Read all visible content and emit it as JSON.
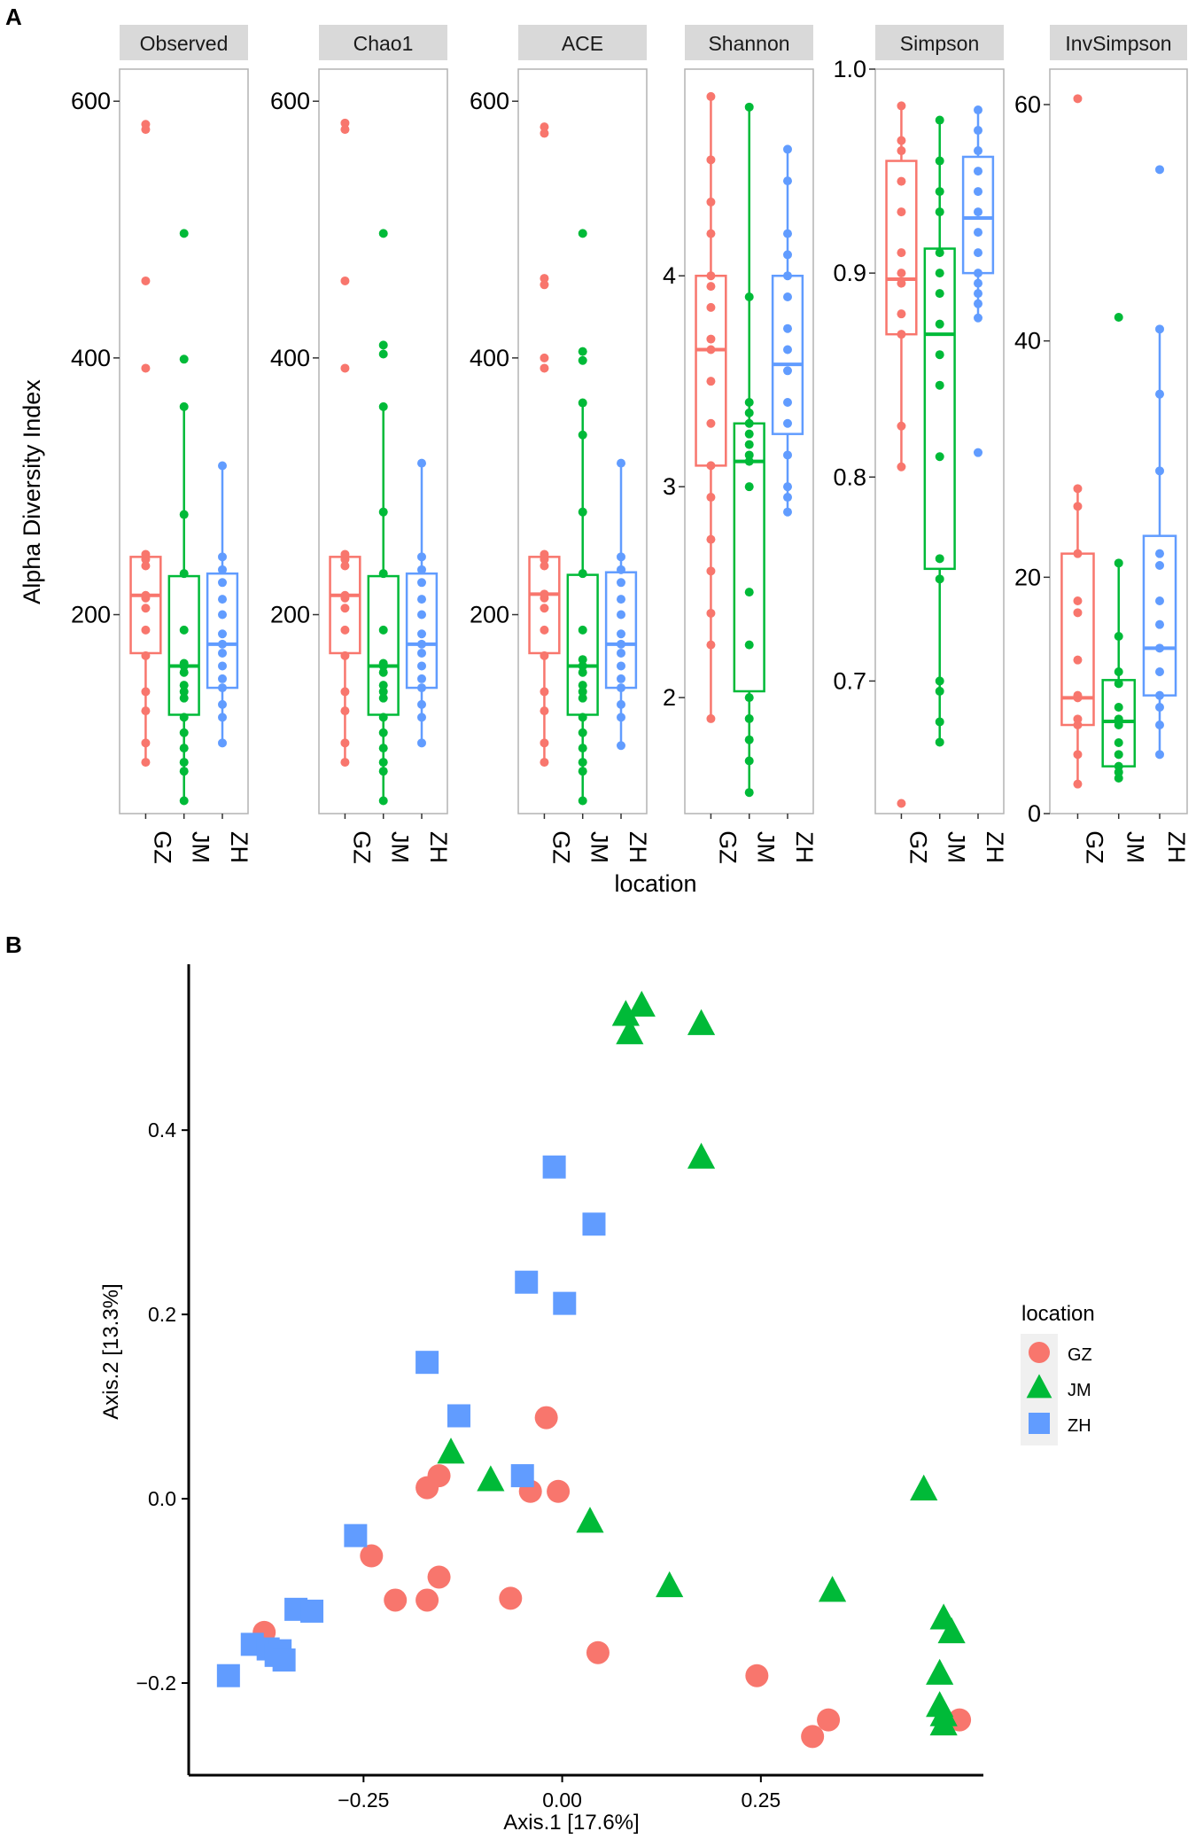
{
  "panel_a_label": "A",
  "panel_b_label": "B",
  "colors": {
    "GZ": "#f8766d",
    "JM": "#00ba38",
    "ZH": "#619cff",
    "strip_bg": "#d9d9d9",
    "panel_border": "#b3b3b3"
  },
  "chart_data": [
    {
      "type": "box",
      "ylabel": "Alpha Diversity Index",
      "xlabel": "location",
      "categories": [
        "GZ",
        "JM",
        "ZH"
      ],
      "facets": [
        {
          "name": "Observed",
          "ylim": [
            45,
            625
          ],
          "ticks": [
            200,
            400,
            600
          ],
          "groups": [
            {
              "name": "GZ",
              "q1": 170,
              "median": 215,
              "q3": 245,
              "whisker_low": 85,
              "whisker_high": 247,
              "points": [
                582,
                578,
                460,
                392,
                247,
                243,
                238,
                215,
                213,
                205,
                188,
                168,
                140,
                125,
                100,
                85
              ]
            },
            {
              "name": "JM",
              "q1": 122,
              "median": 160,
              "q3": 230,
              "whisker_low": 55,
              "whisker_high": 362,
              "points": [
                497,
                399,
                362,
                278,
                232,
                188,
                162,
                160,
                155,
                145,
                140,
                135,
                120,
                108,
                96,
                85,
                78,
                55
              ]
            },
            {
              "name": "ZH",
              "q1": 143,
              "median": 177,
              "q3": 232,
              "whisker_low": 100,
              "whisker_high": 316,
              "points": [
                316,
                245,
                235,
                225,
                212,
                200,
                185,
                177,
                170,
                160,
                150,
                143,
                130,
                120,
                100
              ]
            }
          ]
        },
        {
          "name": "Chao1",
          "ylim": [
            45,
            625
          ],
          "ticks": [
            200,
            400,
            600
          ],
          "groups": [
            {
              "name": "GZ",
              "q1": 170,
              "median": 215,
              "q3": 245,
              "whisker_low": 85,
              "whisker_high": 247,
              "points": [
                583,
                578,
                460,
                392,
                247,
                243,
                238,
                215,
                213,
                205,
                188,
                168,
                140,
                125,
                100,
                85
              ]
            },
            {
              "name": "JM",
              "q1": 122,
              "median": 160,
              "q3": 230,
              "whisker_low": 55,
              "whisker_high": 362,
              "points": [
                497,
                410,
                403,
                362,
                280,
                232,
                188,
                162,
                160,
                155,
                145,
                140,
                135,
                120,
                108,
                96,
                85,
                78,
                55
              ]
            },
            {
              "name": "ZH",
              "q1": 143,
              "median": 177,
              "q3": 232,
              "whisker_low": 100,
              "whisker_high": 318,
              "points": [
                318,
                245,
                235,
                225,
                212,
                200,
                185,
                177,
                170,
                160,
                150,
                143,
                130,
                120,
                100
              ]
            }
          ]
        },
        {
          "name": "ACE",
          "ylim": [
            45,
            625
          ],
          "ticks": [
            200,
            400,
            600
          ],
          "groups": [
            {
              "name": "GZ",
              "q1": 170,
              "median": 216,
              "q3": 245,
              "whisker_low": 85,
              "whisker_high": 247,
              "points": [
                580,
                575,
                462,
                457,
                400,
                392,
                247,
                243,
                238,
                216,
                213,
                205,
                188,
                168,
                140,
                125,
                100,
                85
              ]
            },
            {
              "name": "JM",
              "q1": 122,
              "median": 160,
              "q3": 231,
              "whisker_low": 55,
              "whisker_high": 365,
              "points": [
                497,
                405,
                398,
                365,
                340,
                280,
                232,
                188,
                165,
                160,
                155,
                145,
                140,
                135,
                120,
                108,
                96,
                85,
                78,
                55
              ]
            },
            {
              "name": "ZH",
              "q1": 143,
              "median": 177,
              "q3": 233,
              "whisker_low": 98,
              "whisker_high": 318,
              "points": [
                318,
                245,
                235,
                225,
                212,
                200,
                185,
                177,
                170,
                160,
                150,
                143,
                130,
                120,
                98
              ]
            }
          ]
        },
        {
          "name": "Shannon",
          "ylim": [
            1.45,
            4.98
          ],
          "ticks": [
            2,
            3,
            4
          ],
          "groups": [
            {
              "name": "GZ",
              "q1": 3.1,
              "median": 3.65,
              "q3": 4.0,
              "whisker_low": 1.9,
              "whisker_high": 4.85,
              "points": [
                4.85,
                4.55,
                4.35,
                4.2,
                4.0,
                3.95,
                3.85,
                3.7,
                3.65,
                3.5,
                3.3,
                3.1,
                2.95,
                2.75,
                2.6,
                2.4,
                2.25,
                1.9
              ]
            },
            {
              "name": "JM",
              "q1": 2.03,
              "median": 3.12,
              "q3": 3.3,
              "whisker_low": 1.55,
              "whisker_high": 4.8,
              "points": [
                4.8,
                3.9,
                3.4,
                3.35,
                3.3,
                3.25,
                3.2,
                3.15,
                3.12,
                3.0,
                2.5,
                2.25,
                2.0,
                1.9,
                1.8,
                1.7,
                1.55
              ]
            },
            {
              "name": "ZH",
              "q1": 3.25,
              "median": 3.58,
              "q3": 4.0,
              "whisker_low": 2.88,
              "whisker_high": 4.6,
              "points": [
                4.6,
                4.45,
                4.2,
                4.1,
                4.0,
                3.9,
                3.75,
                3.65,
                3.55,
                3.4,
                3.3,
                3.15,
                3.0,
                2.95,
                2.88
              ]
            }
          ]
        },
        {
          "name": "Simpson",
          "ylim": [
            0.635,
            1.0
          ],
          "ticks": [
            0.7,
            0.8,
            0.9,
            1.0
          ],
          "tick_labels": [
            "0.7",
            "0.8",
            "0.9",
            "1.0"
          ],
          "groups": [
            {
              "name": "GZ",
              "q1": 0.87,
              "median": 0.897,
              "q3": 0.955,
              "whisker_low": 0.805,
              "whisker_high": 0.982,
              "points": [
                0.982,
                0.965,
                0.96,
                0.945,
                0.93,
                0.91,
                0.9,
                0.895,
                0.88,
                0.87,
                0.825,
                0.805,
                0.64
              ]
            },
            {
              "name": "JM",
              "q1": 0.755,
              "median": 0.87,
              "q3": 0.912,
              "whisker_low": 0.67,
              "whisker_high": 0.975,
              "points": [
                0.975,
                0.955,
                0.94,
                0.93,
                0.91,
                0.9,
                0.89,
                0.875,
                0.86,
                0.845,
                0.81,
                0.76,
                0.75,
                0.7,
                0.695,
                0.68,
                0.67
              ]
            },
            {
              "name": "ZH",
              "q1": 0.9,
              "median": 0.927,
              "q3": 0.957,
              "whisker_low": 0.878,
              "whisker_high": 0.98,
              "points": [
                0.98,
                0.97,
                0.96,
                0.95,
                0.94,
                0.93,
                0.92,
                0.91,
                0.9,
                0.895,
                0.89,
                0.885,
                0.878,
                0.812
              ]
            }
          ]
        },
        {
          "name": "InvSimpson",
          "ylim": [
            0,
            63
          ],
          "ticks": [
            0,
            20,
            40,
            60
          ],
          "groups": [
            {
              "name": "GZ",
              "q1": 7.5,
              "median": 9.8,
              "q3": 22,
              "whisker_low": 2.5,
              "whisker_high": 27.5,
              "points": [
                60.5,
                27.5,
                26,
                22,
                18,
                17,
                13,
                10,
                9.8,
                8,
                7.5,
                5,
                2.5
              ]
            },
            {
              "name": "JM",
              "q1": 4,
              "median": 7.8,
              "q3": 11.3,
              "whisker_low": 3,
              "whisker_high": 21.2,
              "points": [
                42,
                21.2,
                15,
                12,
                11,
                9,
                8,
                7.5,
                6,
                5,
                4,
                3.5,
                3
              ]
            },
            {
              "name": "ZH",
              "q1": 10,
              "median": 14,
              "q3": 23.5,
              "whisker_low": 5,
              "whisker_high": 41,
              "points": [
                54.5,
                41,
                35.5,
                29,
                22,
                21,
                18,
                16,
                14,
                12,
                10,
                9,
                7.5,
                5
              ]
            }
          ]
        }
      ]
    },
    {
      "type": "scatter",
      "xlabel": "Axis.1   [17.6%]",
      "ylabel": "Axis.2   [13.3%]",
      "xlim": [
        -0.47,
        0.53
      ],
      "ylim": [
        -0.3,
        0.58
      ],
      "xticks": [
        -0.25,
        0.0,
        0.25
      ],
      "xtick_labels": [
        "−0.25",
        "0.00",
        "0.25"
      ],
      "yticks": [
        -0.2,
        0.0,
        0.2,
        0.4
      ],
      "ytick_labels": [
        "−0.2",
        "0.0",
        "0.2",
        "0.4"
      ],
      "legend": {
        "title": "location",
        "position": "right"
      },
      "series": [
        {
          "name": "GZ",
          "marker": "circle",
          "points": [
            [
              -0.02,
              0.088
            ],
            [
              -0.17,
              0.012
            ],
            [
              -0.155,
              0.025
            ],
            [
              -0.04,
              0.008
            ],
            [
              -0.005,
              0.008
            ],
            [
              -0.24,
              -0.062
            ],
            [
              -0.21,
              -0.11
            ],
            [
              -0.17,
              -0.11
            ],
            [
              -0.155,
              -0.085
            ],
            [
              -0.065,
              -0.108
            ],
            [
              -0.375,
              -0.145
            ],
            [
              0.045,
              -0.167
            ],
            [
              0.245,
              -0.192
            ],
            [
              0.315,
              -0.258
            ],
            [
              0.335,
              -0.24
            ],
            [
              0.5,
              -0.24
            ]
          ]
        },
        {
          "name": "JM",
          "marker": "triangle",
          "points": [
            [
              0.08,
              0.525
            ],
            [
              0.1,
              0.535
            ],
            [
              0.085,
              0.505
            ],
            [
              0.175,
              0.515
            ],
            [
              0.175,
              0.37
            ],
            [
              -0.14,
              0.05
            ],
            [
              -0.09,
              0.02
            ],
            [
              0.035,
              -0.025
            ],
            [
              0.135,
              -0.095
            ],
            [
              0.34,
              -0.1
            ],
            [
              0.455,
              0.01
            ],
            [
              0.48,
              -0.13
            ],
            [
              0.49,
              -0.145
            ],
            [
              0.475,
              -0.19
            ],
            [
              0.475,
              -0.225
            ],
            [
              0.48,
              -0.235
            ],
            [
              0.48,
              -0.245
            ]
          ]
        },
        {
          "name": "ZH",
          "marker": "square",
          "points": [
            [
              -0.01,
              0.36
            ],
            [
              0.04,
              0.298
            ],
            [
              -0.045,
              0.235
            ],
            [
              0.003,
              0.212
            ],
            [
              -0.17,
              0.148
            ],
            [
              -0.13,
              0.09
            ],
            [
              -0.05,
              0.025
            ],
            [
              -0.26,
              -0.04
            ],
            [
              -0.335,
              -0.12
            ],
            [
              -0.315,
              -0.122
            ],
            [
              -0.39,
              -0.158
            ],
            [
              -0.37,
              -0.163
            ],
            [
              -0.355,
              -0.165
            ],
            [
              -0.36,
              -0.17
            ],
            [
              -0.35,
              -0.175
            ],
            [
              -0.42,
              -0.192
            ]
          ]
        }
      ]
    }
  ]
}
